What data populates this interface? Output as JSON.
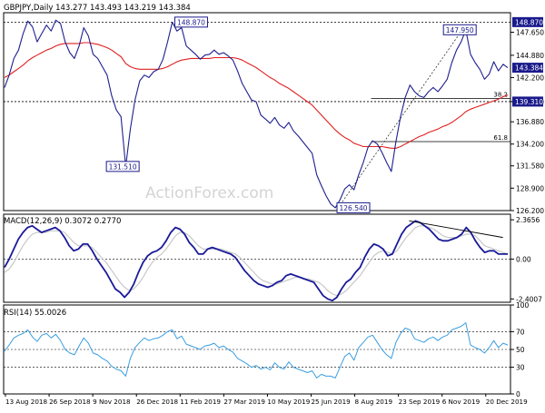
{
  "chart_data": {
    "type": "line",
    "title": "GBPJPY,Daily  143.277 143.493 143.219 143.384",
    "watermark": "ActionForex.com",
    "colors": {
      "price": "#1f1f8f",
      "ema": "#e02020",
      "macd": "#1a1a99",
      "signal": "#c8c8c8",
      "rsi": "#3a9ee0",
      "level_box": "#1a1a8c",
      "grid": "#cccccc",
      "axis": "#000000"
    },
    "x_tick_labels": [
      "13 Aug 2018",
      "26 Sep 2018",
      "9 Nov 2018",
      "26 Dec 2018",
      "11 Feb 2019",
      "27 Mar 2019",
      "10 May 2019",
      "25 Jun 2019",
      "8 Aug 2019",
      "23 Sep 2019",
      "6 Nov 2019",
      "20 Dec 2019"
    ],
    "price_panel": {
      "ylim": [
        126.2,
        150.0
      ],
      "y_tick_labels": [
        "147.650",
        "144.880",
        "142.200",
        "139.310",
        "136.880",
        "134.200",
        "131.580",
        "128.900",
        "126.200"
      ],
      "y_ticks": [
        147.65,
        144.88,
        142.2,
        139.31,
        136.88,
        134.2,
        131.58,
        128.9,
        126.2
      ],
      "current_price_label": "143.384",
      "current_price": 143.384,
      "levels": [
        {
          "value": 148.87,
          "label": "148.870",
          "style": "dotted"
        },
        {
          "value": 139.31,
          "label": "139.310",
          "style": "dotted"
        }
      ],
      "fib_levels": [
        {
          "value": 139.7,
          "label": "38.2",
          "start_frac": 0.725
        },
        {
          "value": 134.5,
          "label": "61.8",
          "start_frac": 0.725
        }
      ],
      "annotations": [
        {
          "label": "148.870",
          "value": 148.87,
          "x_frac": 0.37
        },
        {
          "label": "147.950",
          "value": 147.95,
          "x_frac": 0.9
        },
        {
          "label": "131.510",
          "value": 131.51,
          "x_frac": 0.235
        },
        {
          "label": "126.540",
          "value": 126.54,
          "x_frac": 0.69
        }
      ],
      "trendline": {
        "from": {
          "x_frac": 0.66,
          "value": 126.54
        },
        "to": {
          "x_frac": 0.905,
          "value": 147.95
        }
      },
      "price_series": [
        141,
        142.5,
        144.5,
        145.5,
        147.5,
        149,
        148.3,
        146.5,
        147.5,
        148.5,
        147.8,
        149.1,
        148.7,
        146.5,
        145.2,
        144.5,
        146,
        148.2,
        147.2,
        145,
        144.5,
        143.5,
        142.5,
        140,
        138.3,
        137.5,
        131.51,
        136,
        139.5,
        141.8,
        142.5,
        142.2,
        142.9,
        143.2,
        144.4,
        146.5,
        148.87,
        147.8,
        148.2,
        146,
        145.5,
        145,
        144.4,
        144.9,
        145,
        145.5,
        145,
        145.2,
        144.8,
        144.3,
        143,
        141.5,
        140.5,
        139.5,
        139.3,
        137.7,
        137.2,
        136.7,
        137.4,
        136.5,
        136.1,
        136.8,
        135.8,
        135.2,
        134.5,
        133.8,
        133.1,
        130.5,
        129.2,
        128,
        127,
        126.54,
        127.5,
        128.8,
        129.3,
        128.7,
        130.5,
        132,
        133.8,
        134.6,
        134.2,
        133.2,
        132,
        130.9,
        134.5,
        137.5,
        139.8,
        141.3,
        140.5,
        140,
        139.8,
        140.5,
        141,
        140.5,
        141.2,
        142,
        144,
        145.5,
        146.5,
        147.95,
        145,
        144,
        143.2,
        142,
        142.6,
        144.1,
        143,
        143.8,
        143.384
      ],
      "ema_series": [
        142.2,
        142.5,
        142.9,
        143.3,
        143.7,
        144.2,
        144.6,
        144.9,
        145.2,
        145.5,
        145.7,
        146,
        146.2,
        146.3,
        146.3,
        146.3,
        146.3,
        146.4,
        146.4,
        146.3,
        146.2,
        146,
        145.8,
        145.5,
        145.1,
        144.7,
        143.9,
        143.5,
        143.3,
        143.2,
        143.2,
        143.2,
        143.2,
        143.2,
        143.3,
        143.5,
        143.8,
        144.1,
        144.3,
        144.4,
        144.5,
        144.5,
        144.5,
        144.5,
        144.5,
        144.6,
        144.6,
        144.6,
        144.6,
        144.6,
        144.5,
        144.3,
        144,
        143.7,
        143.4,
        143,
        142.6,
        142.2,
        141.9,
        141.5,
        141.2,
        140.9,
        140.5,
        140.1,
        139.7,
        139.3,
        138.9,
        138.3,
        137.7,
        137.1,
        136.5,
        135.9,
        135.4,
        135,
        134.7,
        134.3,
        134.1,
        133.9,
        133.9,
        133.9,
        133.9,
        133.9,
        133.8,
        133.7,
        133.7,
        133.9,
        134.2,
        134.5,
        134.8,
        135.1,
        135.3,
        135.6,
        135.8,
        136,
        136.3,
        136.5,
        136.8,
        137.2,
        137.6,
        138.1,
        138.4,
        138.6,
        138.8,
        139,
        139.2,
        139.4,
        139.6,
        139.9,
        140.1
      ]
    },
    "macd_panel": {
      "label": "MACD(12,26,9) 0.3072 0.2770",
      "ylim": [
        -2.6,
        2.7
      ],
      "y_tick_labels": [
        "2.3656",
        "0.00",
        "-2.4007"
      ],
      "y_ticks": [
        2.3656,
        0,
        -2.4007
      ],
      "macd_series": [
        -0.5,
        0,
        0.6,
        1.2,
        1.6,
        1.9,
        2,
        1.8,
        1.6,
        1.7,
        1.8,
        1.9,
        1.7,
        1.3,
        0.8,
        0.5,
        0.6,
        0.9,
        0.9,
        0.5,
        0,
        -0.4,
        -0.8,
        -1.3,
        -1.8,
        -2,
        -2.3,
        -2,
        -1.5,
        -0.8,
        -0.2,
        0.2,
        0.4,
        0.5,
        0.7,
        1.1,
        1.6,
        1.9,
        1.8,
        1.5,
        1,
        0.7,
        0.3,
        0.3,
        0.6,
        0.7,
        0.6,
        0.5,
        0.4,
        0.3,
        0.1,
        -0.3,
        -0.7,
        -1,
        -1.3,
        -1.5,
        -1.6,
        -1.7,
        -1.6,
        -1.4,
        -1.3,
        -1,
        -0.9,
        -1,
        -1.1,
        -1.2,
        -1.3,
        -1.4,
        -1.8,
        -2.2,
        -2.4,
        -2.5,
        -2.3,
        -1.8,
        -1.4,
        -1.2,
        -0.8,
        -0.5,
        0.1,
        0.6,
        0.9,
        0.8,
        0.6,
        0.2,
        0.3,
        0.9,
        1.5,
        1.9,
        2.1,
        2.3,
        2.2,
        2,
        1.8,
        1.5,
        1.2,
        1.1,
        1.1,
        1.2,
        1.3,
        1.5,
        1.9,
        1.6,
        1.1,
        0.7,
        0.4,
        0.5,
        0.5,
        0.3,
        0.3,
        0.3072
      ],
      "signal_series": [
        -0.8,
        -0.6,
        -0.2,
        0.3,
        0.8,
        1.2,
        1.5,
        1.6,
        1.6,
        1.6,
        1.7,
        1.7,
        1.7,
        1.6,
        1.3,
        1,
        0.8,
        0.8,
        0.8,
        0.7,
        0.4,
        0.1,
        -0.2,
        -0.6,
        -1,
        -1.4,
        -1.7,
        -1.9,
        -1.8,
        -1.5,
        -1.1,
        -0.6,
        -0.2,
        0.1,
        0.3,
        0.6,
        1,
        1.4,
        1.6,
        1.6,
        1.4,
        1.1,
        0.8,
        0.6,
        0.6,
        0.6,
        0.6,
        0.6,
        0.5,
        0.4,
        0.3,
        0.1,
        -0.2,
        -0.5,
        -0.8,
        -1.1,
        -1.3,
        -1.4,
        -1.5,
        -1.5,
        -1.4,
        -1.3,
        -1.2,
        -1.1,
        -1.1,
        -1.2,
        -1.2,
        -1.3,
        -1.4,
        -1.6,
        -1.9,
        -2.1,
        -2.2,
        -2.1,
        -1.9,
        -1.6,
        -1.3,
        -1,
        -0.6,
        -0.2,
        0.2,
        0.4,
        0.5,
        0.4,
        0.3,
        0.5,
        0.9,
        1.3,
        1.6,
        1.9,
        2,
        2,
        1.9,
        1.8,
        1.6,
        1.4,
        1.3,
        1.3,
        1.3,
        1.4,
        1.5,
        1.5,
        1.4,
        1.1,
        0.8,
        0.7,
        0.6,
        0.5,
        0.4,
        0.277
      ],
      "trendline": {
        "from": {
          "x_frac": 0.8,
          "value": 2.3
        },
        "to": {
          "x_frac": 0.985,
          "value": 1.3
        }
      }
    },
    "rsi_panel": {
      "label": "RSI(14) 55.0026",
      "ylim": [
        0,
        100
      ],
      "y_tick_labels": [
        "100",
        "70",
        "50",
        "30",
        "0"
      ],
      "y_ticks": [
        100,
        70,
        50,
        30,
        0
      ],
      "rsi_series": [
        48,
        55,
        63,
        66,
        68,
        72,
        64,
        59,
        66,
        68,
        63,
        67,
        60,
        50,
        46,
        44,
        54,
        63,
        57,
        46,
        44,
        40,
        37,
        31,
        28,
        26,
        20,
        40,
        52,
        58,
        63,
        60,
        62,
        63,
        66,
        70,
        72,
        62,
        65,
        56,
        54,
        52,
        50,
        54,
        55,
        57,
        52,
        54,
        50,
        47,
        40,
        37,
        34,
        30,
        32,
        28,
        30,
        27,
        35,
        30,
        28,
        36,
        30,
        28,
        26,
        24,
        26,
        18,
        22,
        20,
        20,
        18,
        30,
        42,
        46,
        38,
        52,
        58,
        64,
        66,
        58,
        50,
        44,
        40,
        58,
        68,
        74,
        72,
        62,
        60,
        58,
        62,
        64,
        60,
        64,
        66,
        72,
        74,
        76,
        80,
        55,
        52,
        50,
        46,
        52,
        60,
        52,
        57,
        55.0026
      ]
    }
  }
}
